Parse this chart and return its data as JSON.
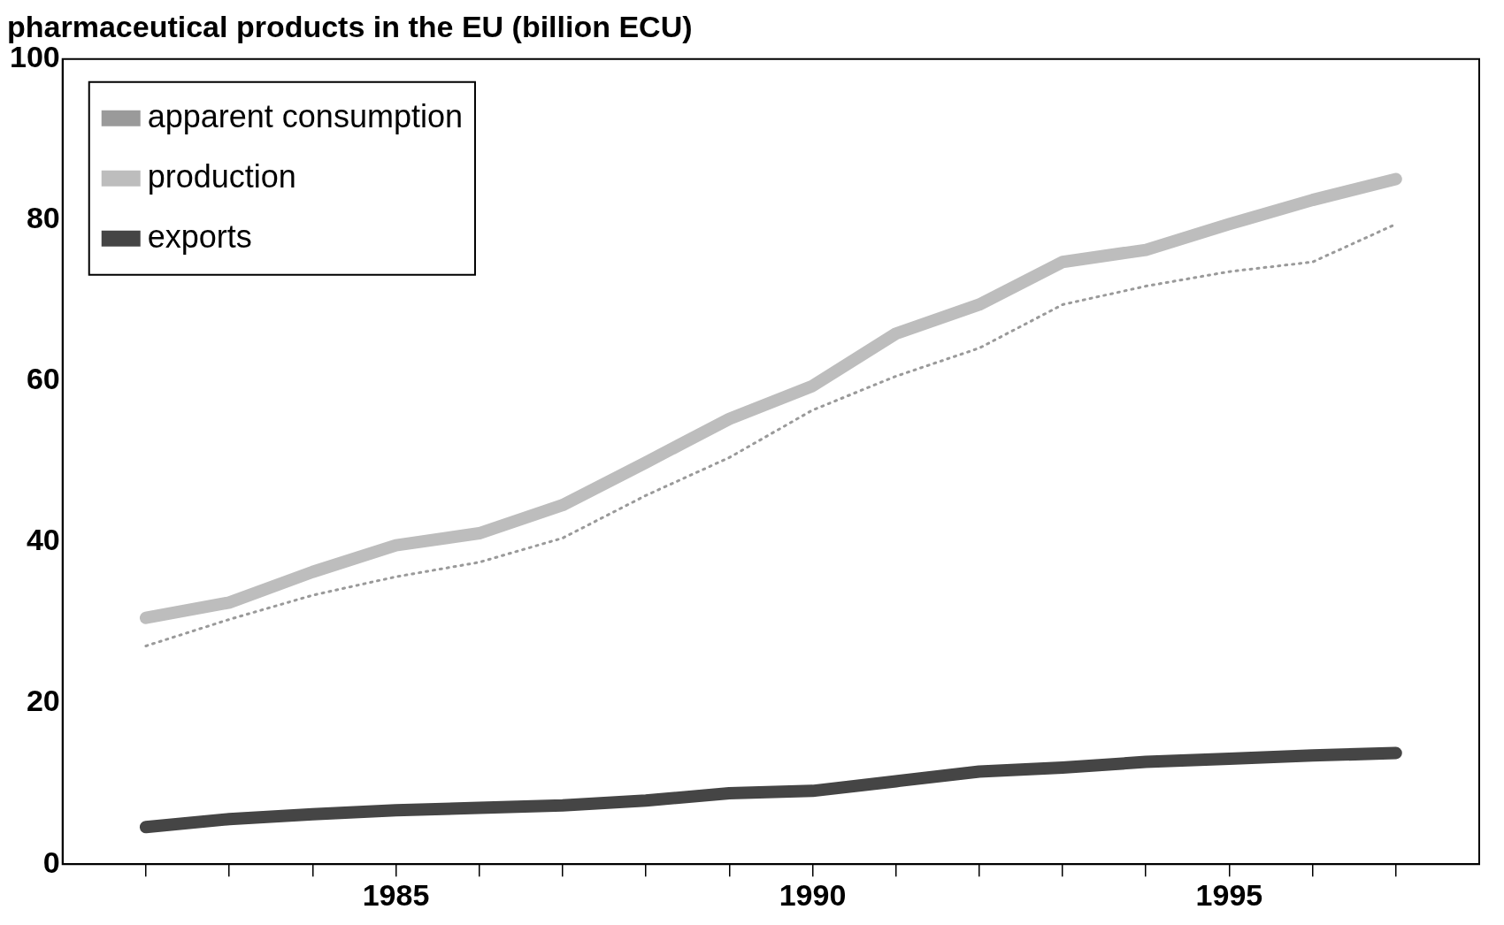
{
  "chart_data": {
    "type": "line",
    "title": "pharmaceutical products in the EU (billion ECU)",
    "x": [
      1982,
      1983,
      1984,
      1985,
      1986,
      1987,
      1988,
      1989,
      1990,
      1991,
      1992,
      1993,
      1994,
      1995,
      1996,
      1997
    ],
    "series": [
      {
        "name": "apparent consumption",
        "color": "#9a9a9a",
        "line_style": "dotted",
        "values": [
          27.1,
          30.4,
          33.4,
          35.7,
          37.5,
          40.5,
          45.8,
          50.5,
          56.4,
          60.6,
          64.1,
          69.5,
          71.8,
          73.6,
          74.8,
          79.5
        ]
      },
      {
        "name": "production",
        "color": "#bdbdbd",
        "line_style": "solid",
        "values": [
          30.6,
          32.5,
          36.3,
          39.6,
          41.1,
          44.6,
          49.9,
          55.3,
          59.4,
          65.9,
          69.5,
          74.8,
          76.3,
          79.5,
          82.5,
          85.1
        ]
      },
      {
        "name": "exports",
        "color": "#454545",
        "line_style": "solid",
        "values": [
          4.6,
          5.6,
          6.2,
          6.7,
          7.0,
          7.3,
          7.9,
          8.8,
          9.1,
          10.3,
          11.5,
          12.0,
          12.7,
          13.1,
          13.5,
          13.8
        ]
      }
    ],
    "xlim": [
      1981,
      1998
    ],
    "xticks": [
      {
        "value": 1982,
        "label": null
      },
      {
        "value": 1983,
        "label": null
      },
      {
        "value": 1984,
        "label": null
      },
      1985,
      {
        "value": 1986,
        "label": null
      },
      {
        "value": 1987,
        "label": null
      },
      {
        "value": 1988,
        "label": null
      },
      {
        "value": 1989,
        "label": null
      },
      1990,
      {
        "value": 1991,
        "label": null
      },
      {
        "value": 1992,
        "label": null
      },
      {
        "value": 1993,
        "label": null
      },
      {
        "value": 1994,
        "label": null
      },
      1995,
      {
        "value": 1996,
        "label": null
      },
      {
        "value": 1997,
        "label": null
      }
    ],
    "ylim": [
      0,
      100
    ],
    "yticks": [
      0,
      20,
      40,
      60,
      80,
      100
    ],
    "grid": false,
    "legend": "top left",
    "marker": "none"
  }
}
